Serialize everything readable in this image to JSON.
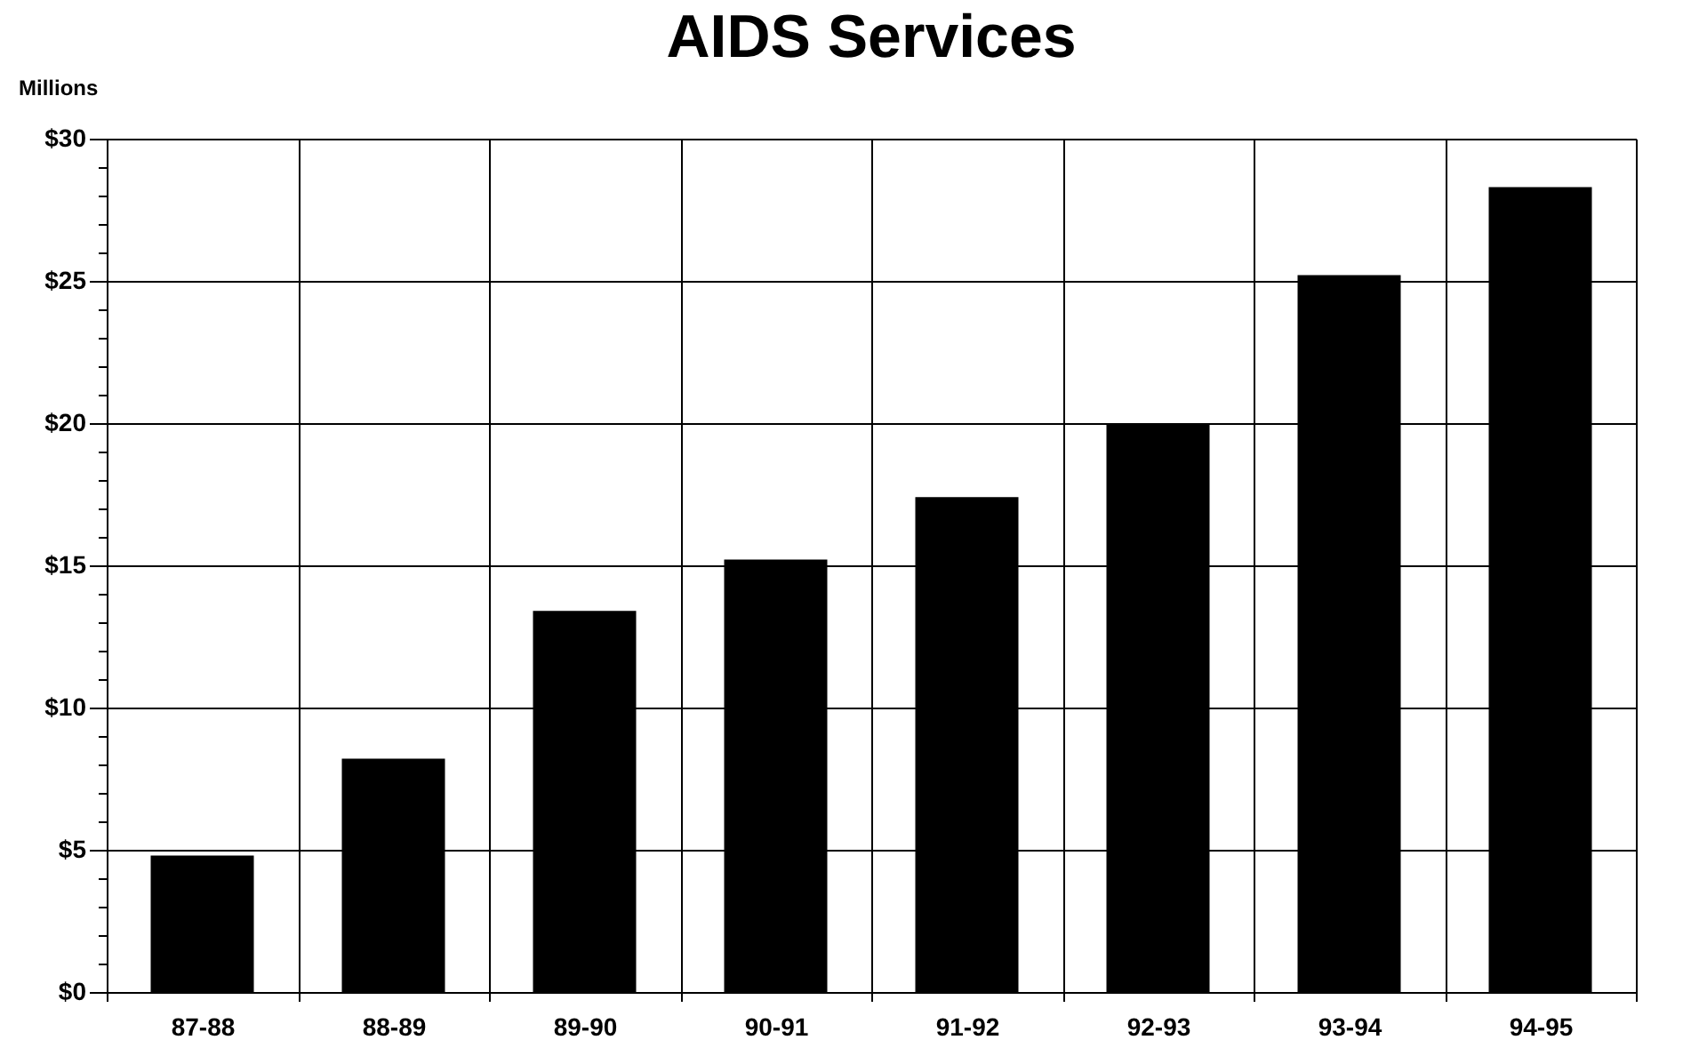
{
  "chart_data": {
    "type": "bar",
    "title": "AIDS Services",
    "ylabel": "Millions",
    "categories": [
      "87-88",
      "88-89",
      "89-90",
      "90-91",
      "91-92",
      "92-93",
      "93-94",
      "94-95"
    ],
    "values": [
      4.8,
      8.2,
      13.4,
      15.2,
      17.4,
      20.0,
      25.2,
      28.3
    ],
    "color": "#000000",
    "ylim": [
      0,
      30
    ],
    "yticks": [
      {
        "value": 0,
        "label": "$0"
      },
      {
        "value": 1,
        "label": null
      },
      {
        "value": 2,
        "label": null
      },
      {
        "value": 3,
        "label": null
      },
      {
        "value": 4,
        "label": null
      },
      {
        "value": 5,
        "label": "$5"
      },
      {
        "value": 6,
        "label": null
      },
      {
        "value": 7,
        "label": null
      },
      {
        "value": 8,
        "label": null
      },
      {
        "value": 9,
        "label": null
      },
      {
        "value": 10,
        "label": "$10"
      },
      {
        "value": 11,
        "label": null
      },
      {
        "value": 12,
        "label": null
      },
      {
        "value": 13,
        "label": null
      },
      {
        "value": 14,
        "label": null
      },
      {
        "value": 15,
        "label": "$15"
      },
      {
        "value": 16,
        "label": null
      },
      {
        "value": 17,
        "label": null
      },
      {
        "value": 18,
        "label": null
      },
      {
        "value": 19,
        "label": null
      },
      {
        "value": 20,
        "label": "$20"
      },
      {
        "value": 21,
        "label": null
      },
      {
        "value": 22,
        "label": null
      },
      {
        "value": 23,
        "label": null
      },
      {
        "value": 24,
        "label": null
      },
      {
        "value": 25,
        "label": "$25"
      },
      {
        "value": 26,
        "label": null
      },
      {
        "value": 27,
        "label": null
      },
      {
        "value": 28,
        "label": null
      },
      {
        "value": 29,
        "label": null
      },
      {
        "value": 30,
        "label": "$30"
      }
    ],
    "grid": true
  }
}
